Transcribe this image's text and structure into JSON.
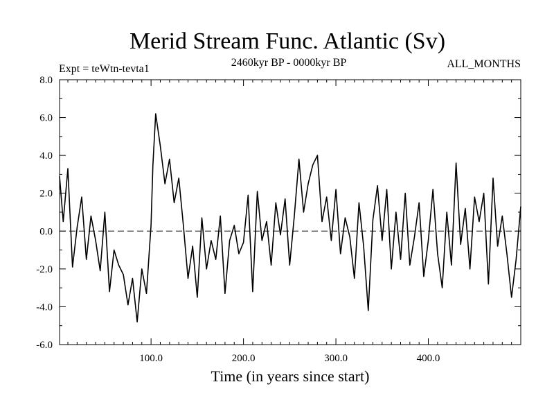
{
  "chart_data": {
    "type": "line",
    "title": "Merid Stream Func. Atlantic (Sv)",
    "subtitle_left": "Expt = teWtn-tevta1",
    "subtitle_center": "2460kyr BP - 0000kyr BP",
    "subtitle_right": "ALL_MONTHS",
    "xlabel": "Time (in years since start)",
    "ylabel": "",
    "xlim": [
      1,
      500
    ],
    "ylim": [
      -6.0,
      8.0
    ],
    "x_ticks": [
      100.0,
      200.0,
      300.0,
      400.0
    ],
    "x_tick_labels": [
      "100.0",
      "200.0",
      "300.0",
      "400.0"
    ],
    "y_ticks": [
      -6.0,
      -4.0,
      -2.0,
      0.0,
      2.0,
      4.0,
      6.0,
      8.0
    ],
    "y_tick_labels": [
      "-6.0",
      "-4.0",
      "-2.0",
      "0.0",
      "2.0",
      "4.0",
      "6.0",
      "8.0"
    ],
    "reference_line": 0.0,
    "series": [
      {
        "name": "Merid Stream Func. Atlantic",
        "color": "#000000",
        "x": [
          1,
          5,
          10,
          15,
          20,
          25,
          30,
          35,
          40,
          45,
          50,
          55,
          60,
          65,
          70,
          75,
          80,
          85,
          90,
          95,
          100,
          102,
          105,
          110,
          115,
          120,
          125,
          130,
          135,
          140,
          145,
          150,
          155,
          160,
          165,
          170,
          175,
          180,
          185,
          190,
          195,
          200,
          205,
          210,
          215,
          220,
          225,
          230,
          235,
          240,
          245,
          250,
          255,
          260,
          265,
          270,
          275,
          280,
          285,
          290,
          295,
          300,
          305,
          310,
          315,
          320,
          325,
          330,
          335,
          340,
          345,
          350,
          355,
          360,
          365,
          370,
          375,
          380,
          385,
          390,
          395,
          400,
          405,
          410,
          415,
          420,
          425,
          430,
          435,
          440,
          445,
          450,
          455,
          460,
          465,
          470,
          475,
          480,
          485,
          490,
          495,
          500
        ],
        "values": [
          2.9,
          0.5,
          3.3,
          -1.9,
          0.2,
          1.8,
          -1.5,
          0.8,
          -0.5,
          -2.1,
          1.0,
          -3.2,
          -1.0,
          -1.8,
          -2.3,
          -3.9,
          -2.5,
          -4.8,
          -2.0,
          -3.3,
          0.3,
          3.5,
          6.2,
          4.5,
          2.5,
          3.8,
          1.5,
          2.8,
          0.3,
          -2.5,
          -0.8,
          -3.5,
          0.7,
          -2.0,
          -0.5,
          -1.5,
          0.8,
          -3.3,
          -0.5,
          0.3,
          -1.2,
          -0.6,
          1.9,
          -3.2,
          2.1,
          -0.5,
          0.5,
          -1.8,
          1.5,
          -0.2,
          1.7,
          -1.8,
          0.8,
          3.8,
          1.0,
          2.5,
          3.5,
          4.0,
          0.5,
          1.8,
          -0.5,
          2.2,
          -1.2,
          0.7,
          -0.3,
          -2.5,
          1.5,
          -0.8,
          -4.2,
          0.6,
          2.4,
          -0.5,
          2.2,
          -2.0,
          1.0,
          -1.5,
          2.0,
          -1.8,
          -0.3,
          1.5,
          -2.4,
          -0.5,
          2.2,
          -1.2,
          -3.0,
          1.0,
          -1.8,
          3.6,
          -0.7,
          1.2,
          -2.0,
          1.8,
          0.5,
          2.0,
          -2.8,
          2.8,
          -0.8,
          0.8,
          -1.2,
          -3.5,
          -1.5,
          1.3
        ]
      }
    ]
  }
}
